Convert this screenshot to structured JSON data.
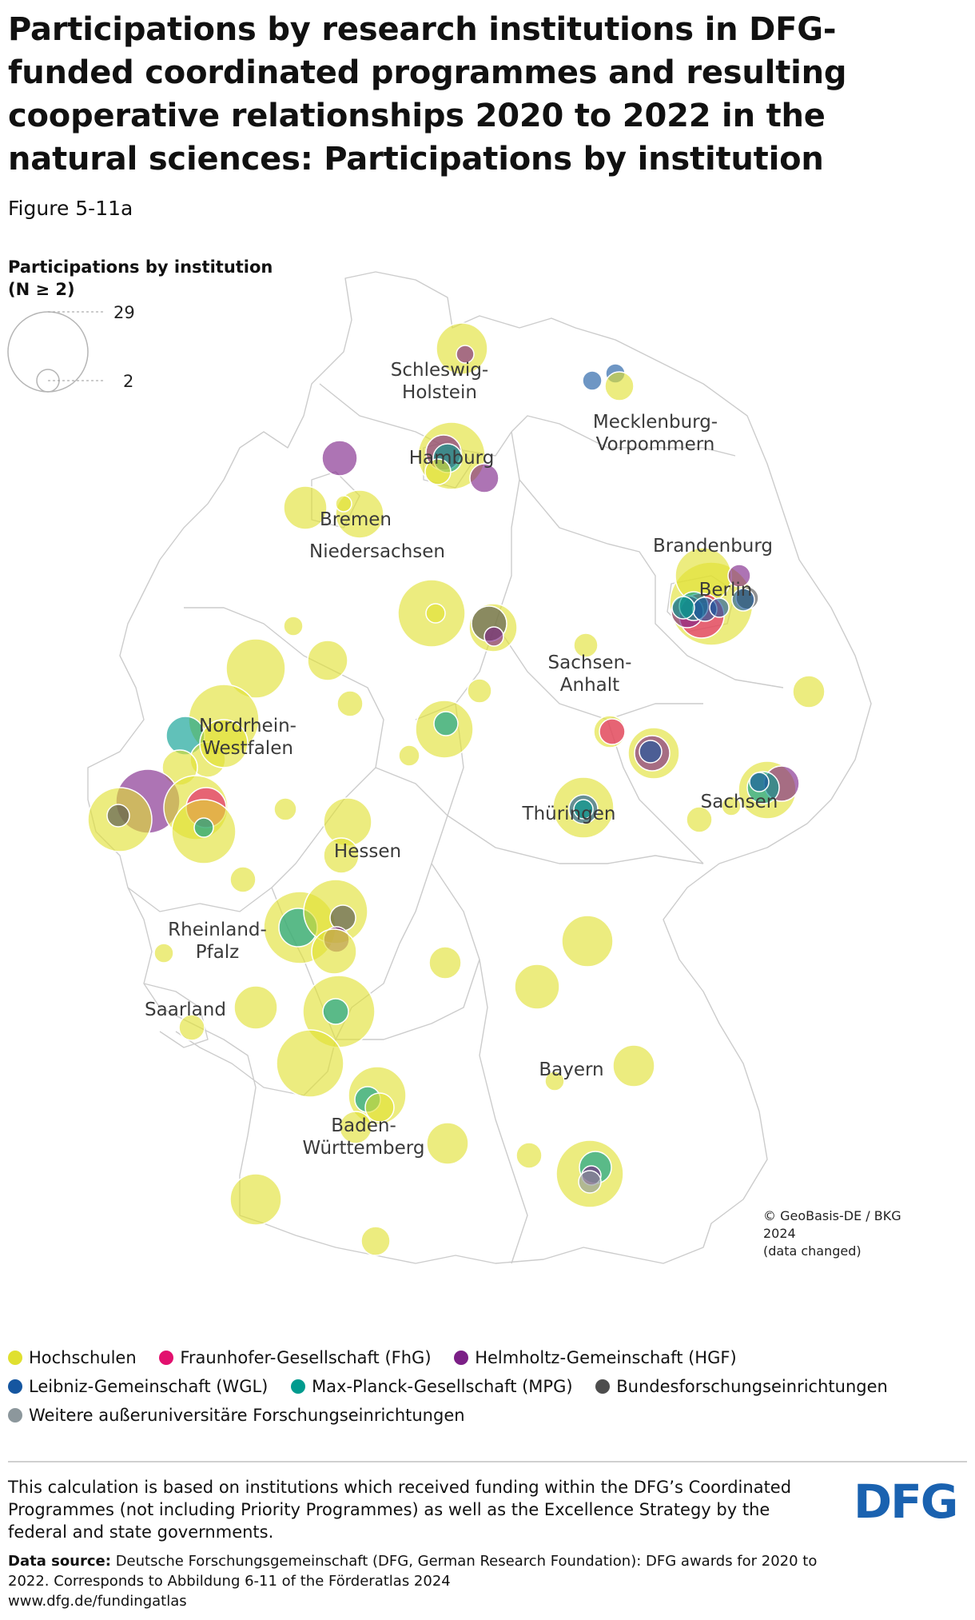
{
  "title": "Participations by research institutions in DFG-funded coordinated programmes and resulting cooperative relationships 2020 to 2022 in the natural sciences: Participations by institution",
  "figure_number": "Figure 5-11a",
  "size_legend": {
    "title_line1": "Participations by institution",
    "title_line2": "(N ≥ 2)",
    "max_label": "29",
    "min_label": "2"
  },
  "regions": [
    {
      "id": "schleswig-holstein",
      "line1": "Schleswig-",
      "line2": "Holstein"
    },
    {
      "id": "mecklenburg-vorpommern",
      "line1": "Mecklenburg-",
      "line2": "Vorpommern"
    },
    {
      "id": "hamburg",
      "line1": "Hamburg"
    },
    {
      "id": "bremen",
      "line1": "Bremen"
    },
    {
      "id": "niedersachsen",
      "line1": "Niedersachsen"
    },
    {
      "id": "brandenburg",
      "line1": "Brandenburg"
    },
    {
      "id": "berlin",
      "line1": "Berlin"
    },
    {
      "id": "sachsen-anhalt",
      "line1": "Sachsen-",
      "line2": "Anhalt"
    },
    {
      "id": "nordrhein-westfalen",
      "line1": "Nordrhein-",
      "line2": "Westfalen"
    },
    {
      "id": "thueringen",
      "line1": "Thüringen"
    },
    {
      "id": "sachsen",
      "line1": "Sachsen"
    },
    {
      "id": "hessen",
      "line1": "Hessen"
    },
    {
      "id": "rheinland-pfalz",
      "line1": "Rheinland-",
      "line2": "Pfalz"
    },
    {
      "id": "saarland",
      "line1": "Saarland"
    },
    {
      "id": "bayern",
      "line1": "Bayern"
    },
    {
      "id": "baden-wuerttemberg",
      "line1": "Baden-",
      "line2": "Württemberg"
    }
  ],
  "copyright": {
    "line1": "© GeoBasis-DE / BKG",
    "line2": "2024",
    "line3": "(data changed)"
  },
  "categories": [
    {
      "key": "hs",
      "label": "Hochschulen",
      "color": "#e0e030"
    },
    {
      "key": "fhg",
      "label": "Fraunhofer-Gesellschaft (FhG)",
      "color": "#e2106e"
    },
    {
      "key": "hgf",
      "label": "Helmholtz-Gemeinschaft (HGF)",
      "color": "#7b1f86"
    },
    {
      "key": "wgl",
      "label": "Leibniz-Gemeinschaft (WGL)",
      "color": "#1556a0"
    },
    {
      "key": "mpg",
      "label": "Max-Planck-Gesellschaft (MPG)",
      "color": "#009b8e"
    },
    {
      "key": "bfe",
      "label": "Bundesforschungseinrichtungen",
      "color": "#4d4d4d"
    },
    {
      "key": "wae",
      "label": "Weitere außeruniversitäre Forschungseinrichtungen",
      "color": "#8c979c"
    }
  ],
  "note": "This calculation is based on institutions which received funding within the DFG’s Coordinated Programmes (not including Priority Programmes) as well as the Excellence Strategy by the federal and state governments.",
  "source": {
    "label": "Data source:",
    "text": "Deutsche Forschungsgemeinschaft (DFG, German Research Foundation): DFG awards for 2020 to 2022. Corresponds to Abbildung 6-11 of the Förderatlas 2024",
    "url": "www.dfg.de/fundingatlas"
  },
  "logo": {
    "text": "DFG",
    "color": "#1a62b0"
  }
}
